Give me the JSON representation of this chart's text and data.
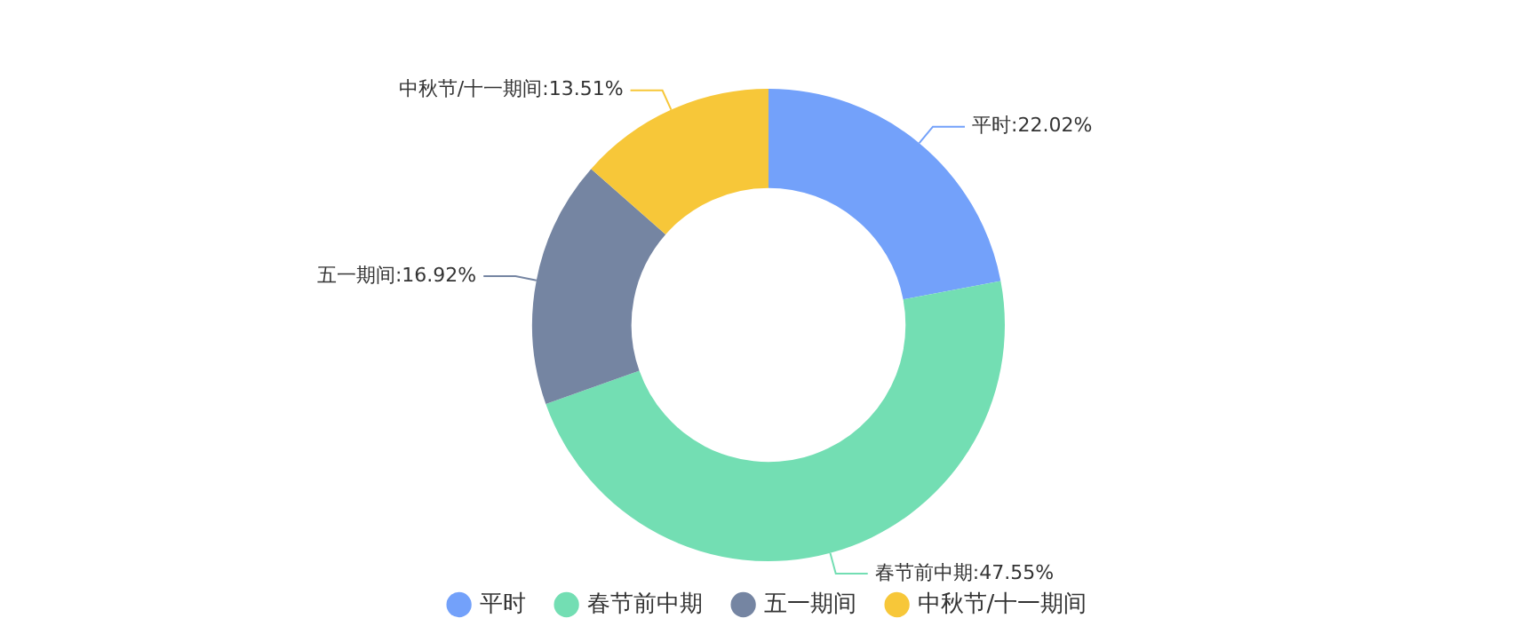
{
  "chart_data": {
    "type": "donut",
    "categories": [
      "平时",
      "春节前中期",
      "五一期间",
      "中秋节/十一期间"
    ],
    "values": [
      22.02,
      47.55,
      16.92,
      13.51
    ],
    "colors": [
      "#73a1fa",
      "#73deb3",
      "#7585a2",
      "#f7c739"
    ],
    "value_labels": [
      "平时:22.02%",
      "春节前中期:47.55%",
      "五一期间:16.92%",
      "中秋节/十一期间:13.51%"
    ],
    "legend": "bottom"
  }
}
